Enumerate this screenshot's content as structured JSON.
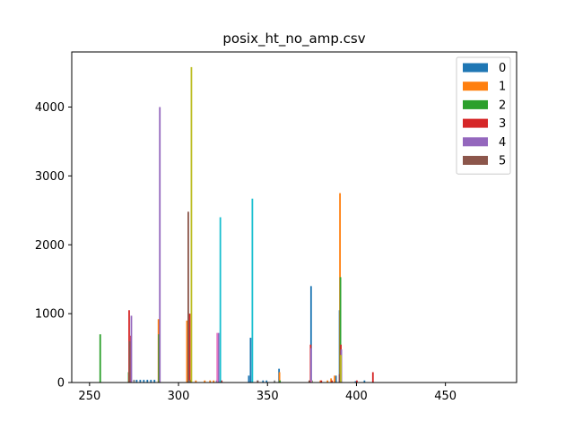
{
  "chart_data": {
    "type": "bar",
    "title": "posix_ht_no_amp.csv",
    "xlabel": "",
    "ylabel": "",
    "xlim": [
      240,
      490
    ],
    "ylim": [
      0,
      4800
    ],
    "x_ticks": [
      250,
      300,
      350,
      400,
      450
    ],
    "y_ticks": [
      0,
      1000,
      2000,
      3000,
      4000
    ],
    "grid": false,
    "legend_position": "top-right",
    "series": [
      {
        "name": "0",
        "color": "#1f77b4",
        "points": [
          [
            277,
            40
          ],
          [
            279,
            40
          ],
          [
            281,
            40
          ],
          [
            283,
            40
          ],
          [
            285,
            40
          ],
          [
            287,
            40
          ],
          [
            307,
            30
          ],
          [
            322,
            30
          ],
          [
            340,
            100
          ],
          [
            341,
            650
          ],
          [
            345,
            30
          ],
          [
            348,
            30
          ],
          [
            350,
            30
          ],
          [
            357,
            200
          ],
          [
            375,
            1400
          ],
          [
            389,
            100
          ],
          [
            391,
            1050
          ],
          [
            400,
            20
          ],
          [
            405,
            30
          ]
        ]
      },
      {
        "name": "1",
        "color": "#ff7f0e",
        "points": [
          [
            289,
            920
          ],
          [
            305,
            900
          ],
          [
            310,
            30
          ],
          [
            315,
            30
          ],
          [
            318,
            30
          ],
          [
            320,
            30
          ],
          [
            357,
            150
          ],
          [
            380,
            30
          ],
          [
            384,
            30
          ],
          [
            386,
            60
          ],
          [
            388,
            100
          ],
          [
            391,
            2750
          ]
        ]
      },
      {
        "name": "2",
        "color": "#2ca02c",
        "points": [
          [
            256,
            700
          ],
          [
            272,
            150
          ],
          [
            289,
            700
          ],
          [
            307,
            40
          ],
          [
            357,
            30
          ],
          [
            375,
            30
          ],
          [
            391,
            1530
          ]
        ]
      },
      {
        "name": "3",
        "color": "#d62728",
        "points": [
          [
            272,
            1050
          ],
          [
            273,
            680
          ],
          [
            306,
            1000
          ],
          [
            324,
            30
          ],
          [
            374,
            550
          ],
          [
            380,
            30
          ],
          [
            386,
            30
          ],
          [
            391,
            550
          ],
          [
            400,
            30
          ],
          [
            409,
            150
          ]
        ]
      },
      {
        "name": "4",
        "color": "#9467bd",
        "points": [
          [
            273,
            970
          ],
          [
            289,
            4000
          ],
          [
            322,
            720
          ],
          [
            374,
            500
          ],
          [
            391,
            480
          ]
        ]
      },
      {
        "name": "5",
        "color": "#8c564b",
        "points": [
          [
            273,
            600
          ],
          [
            306,
            2480
          ],
          [
            345,
            30
          ],
          [
            374,
            30
          ],
          [
            391,
            120
          ]
        ]
      },
      {
        "name": "",
        "color": "#e377c2",
        "points": [
          [
            322,
            720
          ],
          [
            375,
            30
          ]
        ]
      },
      {
        "name": "",
        "color": "#7f7f7f",
        "points": [
          [
            275,
            40
          ],
          [
            306,
            30
          ],
          [
            354,
            30
          ]
        ]
      },
      {
        "name": "",
        "color": "#bcbd22",
        "points": [
          [
            307,
            4580
          ],
          [
            391,
            400
          ]
        ]
      },
      {
        "name": "",
        "color": "#17becf",
        "points": [
          [
            323,
            2400
          ],
          [
            341,
            2670
          ],
          [
            323,
            30
          ]
        ]
      }
    ]
  }
}
